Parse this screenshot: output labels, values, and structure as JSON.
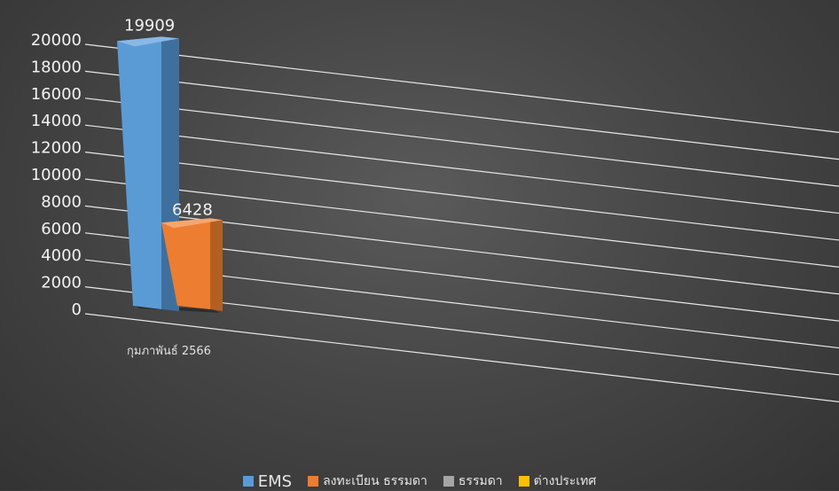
{
  "chart_data": {
    "type": "bar",
    "title": "",
    "categories": [
      "กุมภาพันธ์ 2566"
    ],
    "series": [
      {
        "name": "EMS",
        "values": [
          19909
        ],
        "color": "#5b9bd5"
      },
      {
        "name": "ลงทะเบียน ธรรมดา",
        "values": [
          6428
        ],
        "color": "#ed7d31"
      },
      {
        "name": "ธรรมดา",
        "values": [
          null
        ],
        "color": "#a5a5a5"
      },
      {
        "name": "ต่างประเทศ",
        "values": [
          null
        ],
        "color": "#ffc000"
      }
    ],
    "data_labels": [
      "19909",
      "6428"
    ],
    "y_ticks": [
      "0",
      "2000",
      "4000",
      "6000",
      "8000",
      "10000",
      "12000",
      "14000",
      "16000",
      "18000",
      "20000"
    ],
    "ylim": [
      0,
      20000
    ],
    "grid": true,
    "legend_position": "bottom"
  }
}
